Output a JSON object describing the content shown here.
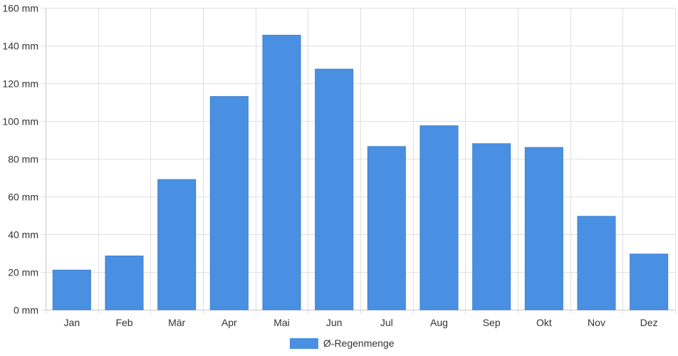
{
  "chart_data": {
    "type": "bar",
    "categories": [
      "Jan",
      "Feb",
      "Mär",
      "Apr",
      "Mai",
      "Jun",
      "Jul",
      "Aug",
      "Sep",
      "Okt",
      "Nov",
      "Dez"
    ],
    "series": [
      {
        "name": "Ø-Regenmenge",
        "values": [
          21,
          28.5,
          69,
          113,
          145.5,
          127.5,
          86.5,
          97.5,
          88,
          86,
          49.5,
          29.5
        ],
        "color": "#4a90e2"
      }
    ],
    "y_ticks": [
      "0 mm",
      "20 mm",
      "40 mm",
      "60 mm",
      "80 mm",
      "100 mm",
      "120 mm",
      "140 mm",
      "160 mm"
    ],
    "ylim": [
      0,
      160
    ],
    "grid": true,
    "legend_position": "bottom",
    "colors": {
      "bar": "#4a90e2",
      "grid": "#e0e0e0",
      "text": "#333333"
    }
  }
}
